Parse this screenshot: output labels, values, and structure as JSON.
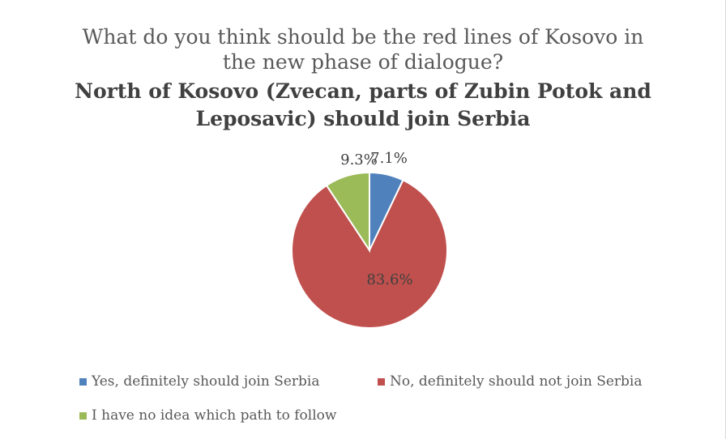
{
  "chart_data": {
    "type": "pie",
    "title_line1": "What do you think should be the red lines of Kosovo in",
    "title_line2": "the new phase of dialogue?",
    "subtitle_line1": "North of Kosovo (Zvecan, parts of Zubin Potok and",
    "subtitle_line2": "Leposavic) should join Serbia",
    "slices": [
      {
        "label": "Yes, definitely should join Serbia",
        "value": 7.1,
        "display": "7.1%",
        "color": "#4f81bd"
      },
      {
        "label": "No, definitely should not join Serbia",
        "value": 83.6,
        "display": "83.6%",
        "color": "#c0504d"
      },
      {
        "label": "I have no idea which path to follow",
        "value": 9.3,
        "display": "9.3%",
        "color": "#9bbb59"
      }
    ],
    "legend_position": "bottom"
  }
}
